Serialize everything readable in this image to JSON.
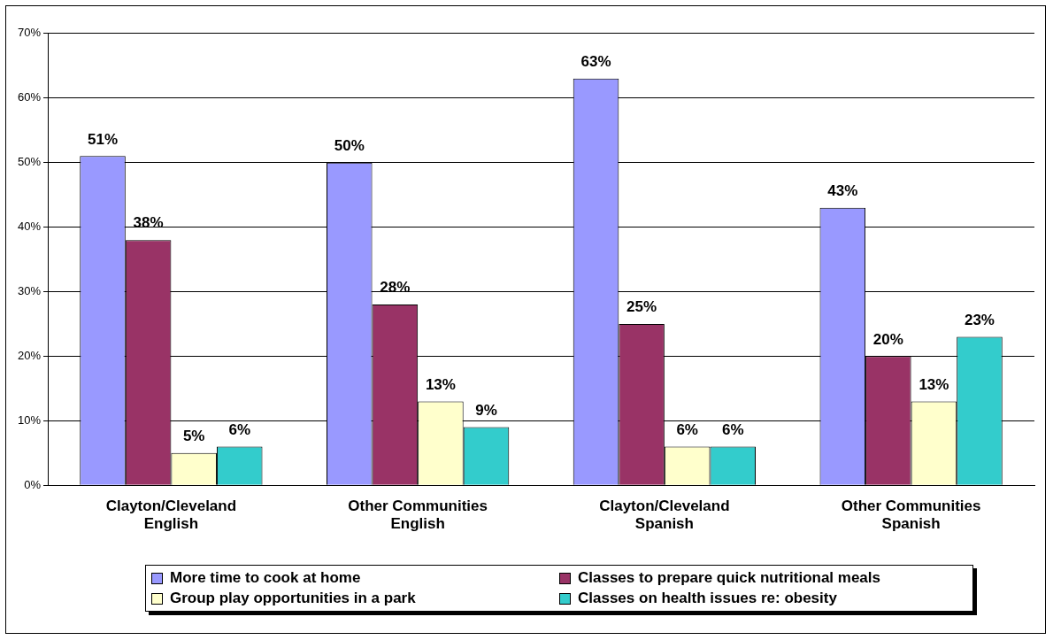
{
  "chart_data": {
    "type": "bar",
    "categories": [
      "Clayton/Cleveland English",
      "Other Communities English",
      "Clayton/Cleveland Spanish",
      "Other Communities Spanish"
    ],
    "series": [
      {
        "name": "More time to cook at home",
        "color": "#9999ff",
        "values": [
          51,
          50,
          63,
          43
        ],
        "value_labels": [
          "51%",
          "50%",
          "63%",
          "43%"
        ]
      },
      {
        "name": "Classes to prepare quick nutritional meals",
        "color": "#993366",
        "values": [
          38,
          28,
          25,
          20
        ],
        "value_labels": [
          "38%",
          "28%",
          "25%",
          "20%"
        ]
      },
      {
        "name": "Group play opportunities in a park",
        "color": "#ffffcc",
        "values": [
          5,
          13,
          6,
          13
        ],
        "value_labels": [
          "5%",
          "13%",
          "6%",
          "13%"
        ]
      },
      {
        "name": "Classes on health issues re: obesity",
        "color": "#33cccc",
        "values": [
          6,
          9,
          6,
          23
        ],
        "value_labels": [
          "6%",
          "9%",
          "6%",
          "23%"
        ]
      }
    ],
    "ylim": [
      0,
      70
    ],
    "yticks": [
      {
        "value": 0,
        "label": "0%"
      },
      {
        "value": 10,
        "label": "10%"
      },
      {
        "value": 20,
        "label": "20%"
      },
      {
        "value": 30,
        "label": "30%"
      },
      {
        "value": 40,
        "label": "40%"
      },
      {
        "value": 50,
        "label": "50%"
      },
      {
        "value": 60,
        "label": "60%"
      },
      {
        "value": 70,
        "label": "70%"
      }
    ],
    "grid": "y",
    "legend": "bottom"
  }
}
